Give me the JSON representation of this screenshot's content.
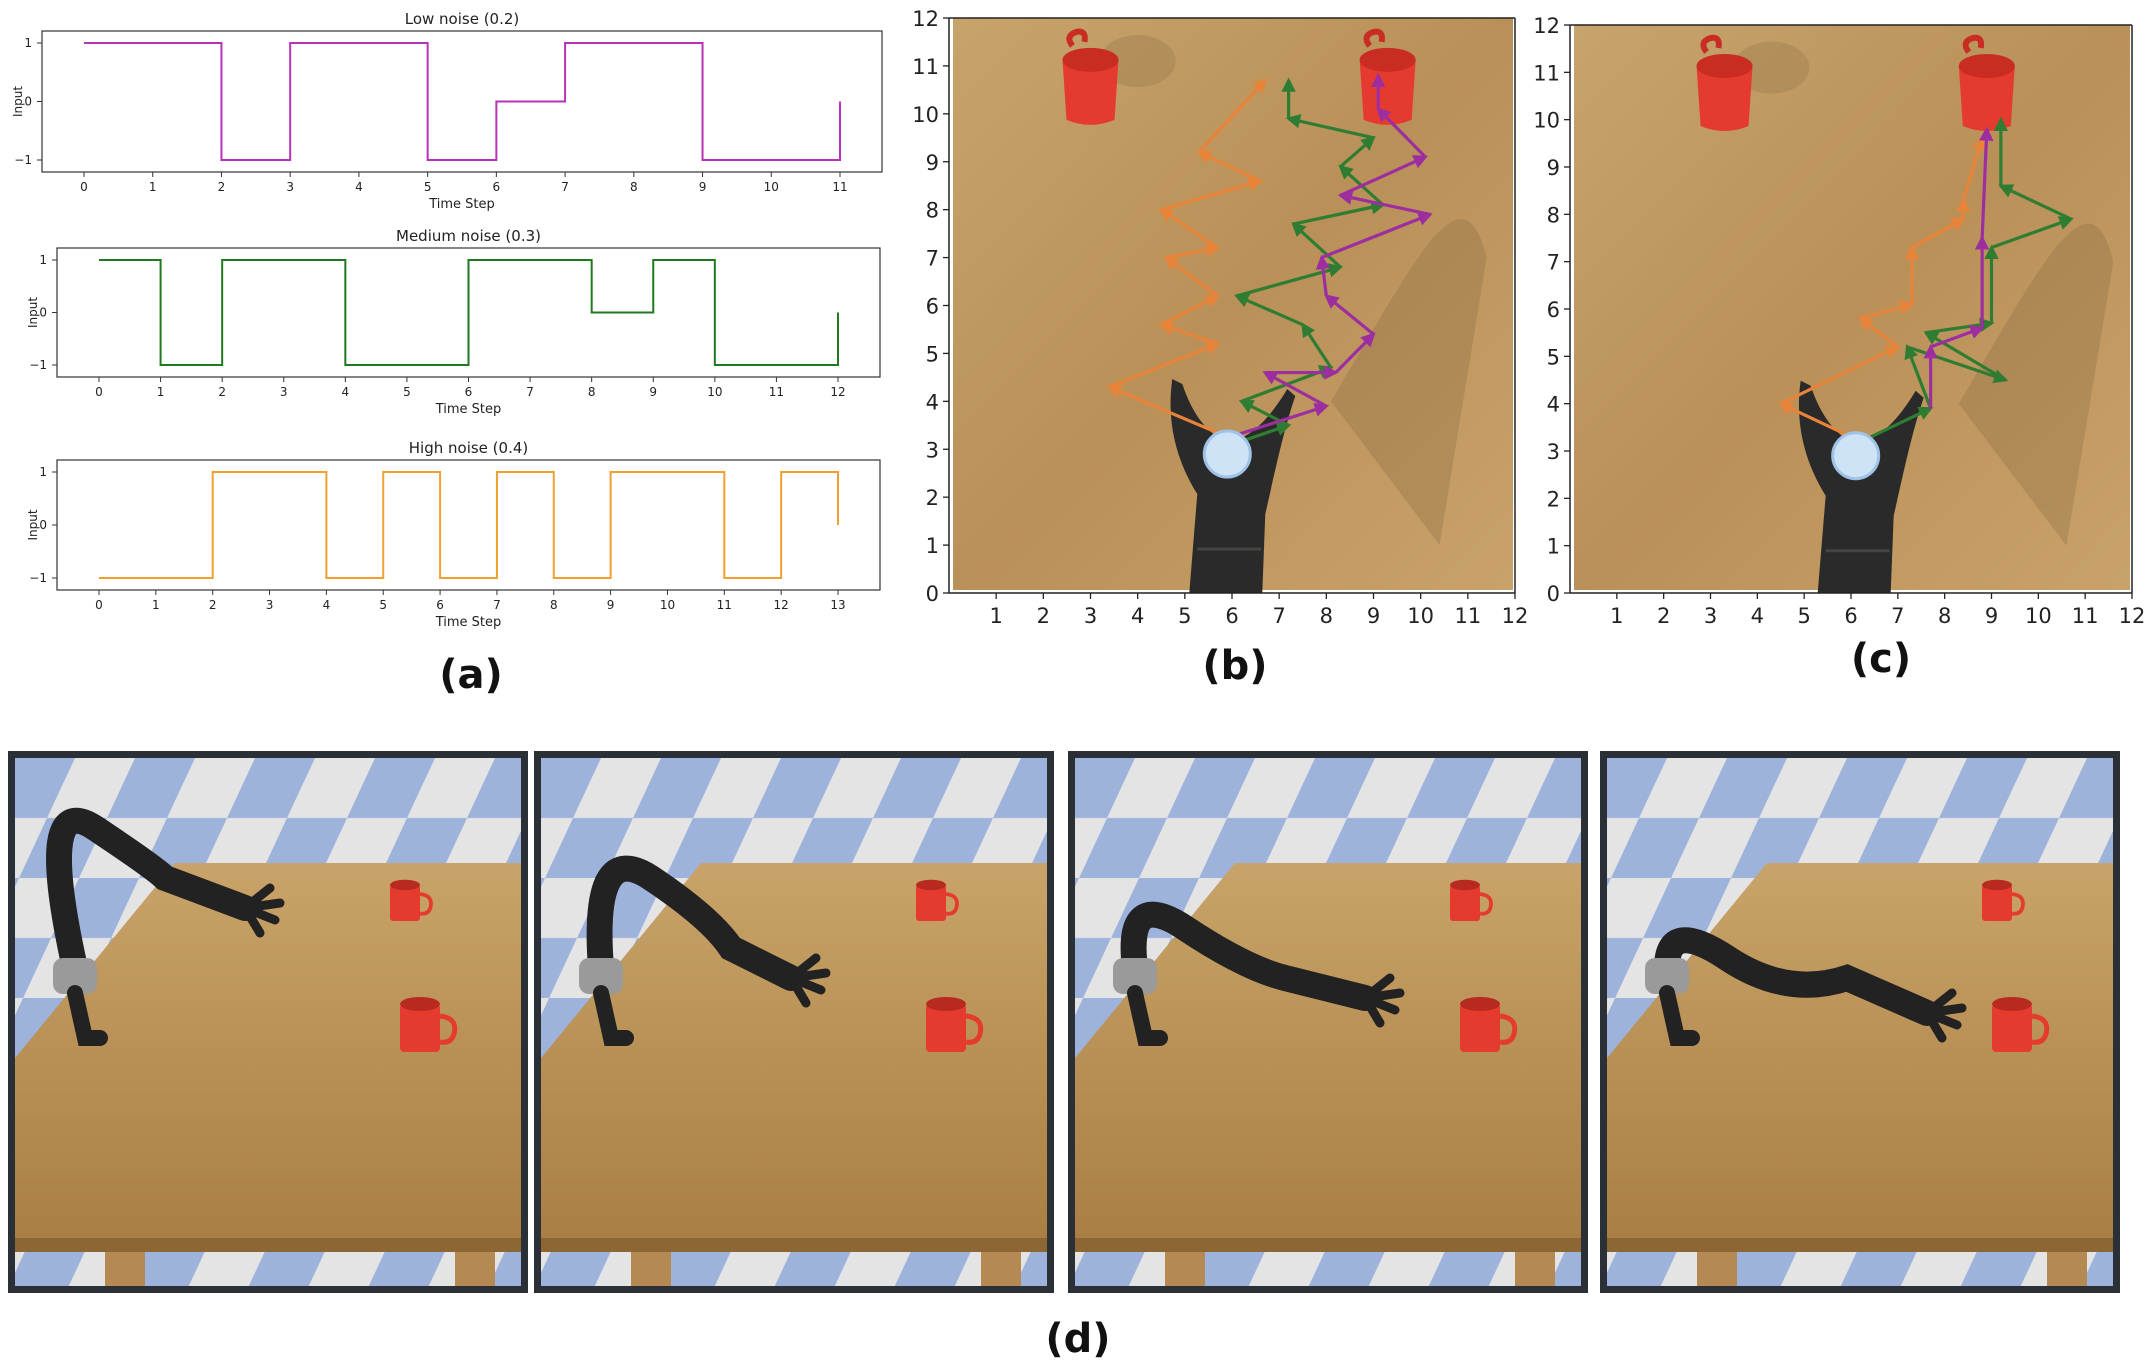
{
  "labels": {
    "a": "(a)",
    "b": "(b)",
    "c": "(c)",
    "d": "(d)"
  },
  "colors": {
    "low": "#b832b8",
    "medium": "#1f7a1f",
    "high": "#f0a030",
    "orange_path": "#e8843a",
    "green_path": "#2e7d32",
    "purple_path": "#9c2ea0",
    "mug": "#e53b2e",
    "table": "#c49a60",
    "floor_blue": "#9eb3dc",
    "frame": "#2b2f36"
  },
  "chart_data": [
    {
      "type": "line",
      "title": "Low noise (0.2)",
      "xlabel": "Time Step",
      "ylabel": "Input",
      "xlim": [
        0,
        11
      ],
      "ylim": [
        -1,
        1
      ],
      "x_ticks": [
        "0",
        "1",
        "2",
        "3",
        "4",
        "5",
        "6",
        "7",
        "8",
        "9",
        "10",
        "11"
      ],
      "y_ticks": [
        "1",
        "0",
        "−1"
      ],
      "step": true,
      "series": [
        {
          "x": [
            0,
            2,
            3,
            5,
            6,
            7,
            9,
            11
          ],
          "values": [
            1,
            -1,
            1,
            -1,
            0,
            1,
            -1,
            0
          ]
        }
      ]
    },
    {
      "type": "line",
      "title": "Medium noise (0.3)",
      "xlabel": "Time Step",
      "ylabel": "Input",
      "xlim": [
        0,
        12
      ],
      "ylim": [
        -1,
        1
      ],
      "x_ticks": [
        "0",
        "1",
        "2",
        "3",
        "4",
        "5",
        "6",
        "7",
        "8",
        "9",
        "10",
        "11",
        "12"
      ],
      "y_ticks": [
        "1",
        "0",
        "−1"
      ],
      "step": true,
      "series": [
        {
          "x": [
            0,
            1,
            2,
            4,
            6,
            8,
            9,
            10,
            12
          ],
          "values": [
            1,
            -1,
            1,
            -1,
            1,
            0,
            1,
            -1,
            0
          ]
        }
      ]
    },
    {
      "type": "line",
      "title": "High noise (0.4)",
      "xlabel": "Time Step",
      "ylabel": "Input",
      "xlim": [
        0,
        13
      ],
      "ylim": [
        -1,
        1
      ],
      "x_ticks": [
        "0",
        "1",
        "2",
        "3",
        "4",
        "5",
        "6",
        "7",
        "8",
        "9",
        "10",
        "11",
        "12",
        "13"
      ],
      "y_ticks": [
        "1",
        "0",
        "−1"
      ],
      "step": true,
      "series": [
        {
          "x": [
            0,
            2,
            4,
            5,
            6,
            7,
            8,
            9,
            11,
            12,
            13
          ],
          "values": [
            -1,
            1,
            -1,
            1,
            -1,
            1,
            -1,
            1,
            -1,
            1,
            0
          ]
        }
      ]
    }
  ],
  "grid_b": {
    "x_ticks": [
      "1",
      "2",
      "3",
      "4",
      "5",
      "6",
      "7",
      "8",
      "9",
      "10",
      "11",
      "12"
    ],
    "y_ticks": [
      "0",
      "1",
      "2",
      "3",
      "4",
      "5",
      "6",
      "7",
      "8",
      "9",
      "10",
      "11",
      "12"
    ],
    "start": [
      5.9,
      2.9
    ],
    "mugs": [
      [
        3,
        10.5
      ],
      [
        9.3,
        10.5
      ]
    ],
    "paths": [
      {
        "key": "orange",
        "points": [
          [
            5.8,
            3.3
          ],
          [
            3.4,
            4.3
          ],
          [
            5.7,
            5.2
          ],
          [
            4.5,
            5.6
          ],
          [
            5.7,
            6.2
          ],
          [
            4.6,
            7.0
          ],
          [
            5.7,
            7.2
          ],
          [
            4.5,
            8.0
          ],
          [
            6.6,
            8.6
          ],
          [
            5.3,
            9.2
          ],
          [
            6.7,
            10.7
          ]
        ]
      },
      {
        "key": "green",
        "points": [
          [
            6.0,
            3.1
          ],
          [
            7.2,
            3.5
          ],
          [
            6.2,
            4.0
          ],
          [
            8.1,
            4.7
          ],
          [
            7.5,
            5.6
          ],
          [
            6.1,
            6.2
          ],
          [
            8.3,
            6.8
          ],
          [
            7.3,
            7.7
          ],
          [
            9.2,
            8.1
          ],
          [
            8.3,
            8.9
          ],
          [
            9.0,
            9.5
          ],
          [
            7.2,
            9.9
          ],
          [
            7.2,
            10.7
          ]
        ]
      },
      {
        "key": "purple",
        "points": [
          [
            6.1,
            3.3
          ],
          [
            8.0,
            3.9
          ],
          [
            6.7,
            4.6
          ],
          [
            8.2,
            4.6
          ],
          [
            9.0,
            5.4
          ],
          [
            8.0,
            6.2
          ],
          [
            7.9,
            7.0
          ],
          [
            10.2,
            7.9
          ],
          [
            8.3,
            8.3
          ],
          [
            10.1,
            9.1
          ],
          [
            9.1,
            10.1
          ],
          [
            9.1,
            10.8
          ]
        ]
      }
    ]
  },
  "grid_c": {
    "x_ticks": [
      "1",
      "2",
      "3",
      "4",
      "5",
      "6",
      "7",
      "8",
      "9",
      "10",
      "11",
      "12"
    ],
    "y_ticks": [
      "0",
      "1",
      "2",
      "3",
      "4",
      "5",
      "6",
      "7",
      "8",
      "9",
      "10",
      "11",
      "12"
    ],
    "start": [
      6.1,
      2.9
    ],
    "mugs": [
      [
        3.3,
        10.5
      ],
      [
        8.9,
        10.5
      ]
    ],
    "paths": [
      {
        "key": "orange",
        "points": [
          [
            6.0,
            3.3
          ],
          [
            4.5,
            4.0
          ],
          [
            7.0,
            5.2
          ],
          [
            6.2,
            5.8
          ],
          [
            7.3,
            6.1
          ],
          [
            7.3,
            7.3
          ],
          [
            8.4,
            7.9
          ],
          [
            8.4,
            8.3
          ],
          [
            8.8,
            9.6
          ]
        ]
      },
      {
        "key": "green",
        "points": [
          [
            6.0,
            3.1
          ],
          [
            7.7,
            3.9
          ],
          [
            7.2,
            5.2
          ],
          [
            9.3,
            4.5
          ],
          [
            7.6,
            5.5
          ],
          [
            9.0,
            5.7
          ],
          [
            9.0,
            7.3
          ],
          [
            10.7,
            7.9
          ],
          [
            9.2,
            8.6
          ],
          [
            9.2,
            10.0
          ]
        ]
      },
      {
        "key": "purple",
        "points": [
          [
            7.7,
            3.9
          ],
          [
            7.7,
            5.2
          ],
          [
            8.8,
            5.6
          ],
          [
            8.8,
            7.5
          ],
          [
            8.9,
            9.8
          ]
        ]
      }
    ]
  },
  "icons": {
    "start_marker": "start-circle-icon",
    "mug": "mug-icon",
    "robot_arm": "robot-arm-icon"
  }
}
